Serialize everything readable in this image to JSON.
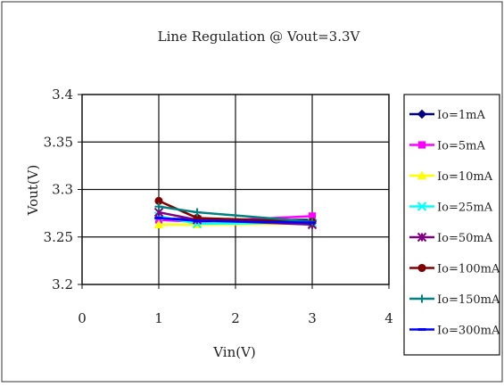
{
  "chart_data": {
    "type": "line",
    "title": "Line Regulation @ Vout=3.3V",
    "xlabel": "Vin(V)",
    "ylabel": "Vout(V)",
    "xlim": [
      0,
      4
    ],
    "ylim": [
      3.2,
      3.4
    ],
    "xticks": [
      0,
      1,
      2,
      3,
      4
    ],
    "yticks": [
      3.2,
      3.25,
      3.3,
      3.35,
      3.4
    ],
    "xtick_labels": [
      "0",
      "1",
      "2",
      "3",
      "4"
    ],
    "ytick_labels": [
      "3.2",
      "3.25",
      "3.3",
      "3.35",
      "3.4"
    ],
    "grid": true,
    "legend_position": "right",
    "x": [
      1,
      1.5,
      3
    ],
    "series": [
      {
        "name": "Io=1mA",
        "color": "#000080",
        "marker": "diamond",
        "values": [
          3.27,
          3.268,
          3.268
        ]
      },
      {
        "name": "Io=5mA",
        "color": "#ff00ff",
        "marker": "square",
        "values": [
          3.268,
          3.266,
          3.272
        ]
      },
      {
        "name": "Io=10mA",
        "color": "#ffff00",
        "marker": "triangle",
        "values": [
          3.263,
          3.263,
          3.264
        ]
      },
      {
        "name": "Io=25mA",
        "color": "#00ffff",
        "marker": "x",
        "values": [
          3.272,
          3.264,
          3.265
        ]
      },
      {
        "name": "Io=50mA",
        "color": "#800080",
        "marker": "star",
        "values": [
          3.276,
          3.268,
          3.263
        ]
      },
      {
        "name": "Io=100mA",
        "color": "#800000",
        "marker": "circle",
        "values": [
          3.288,
          3.27,
          3.266
        ]
      },
      {
        "name": "Io=150mA",
        "color": "#008080",
        "marker": "plus",
        "values": [
          3.282,
          3.276,
          3.266
        ]
      },
      {
        "name": "Io=300mA",
        "color": "#0000ff",
        "marker": "dash",
        "values": [
          3.27,
          3.267,
          3.265
        ]
      }
    ]
  }
}
